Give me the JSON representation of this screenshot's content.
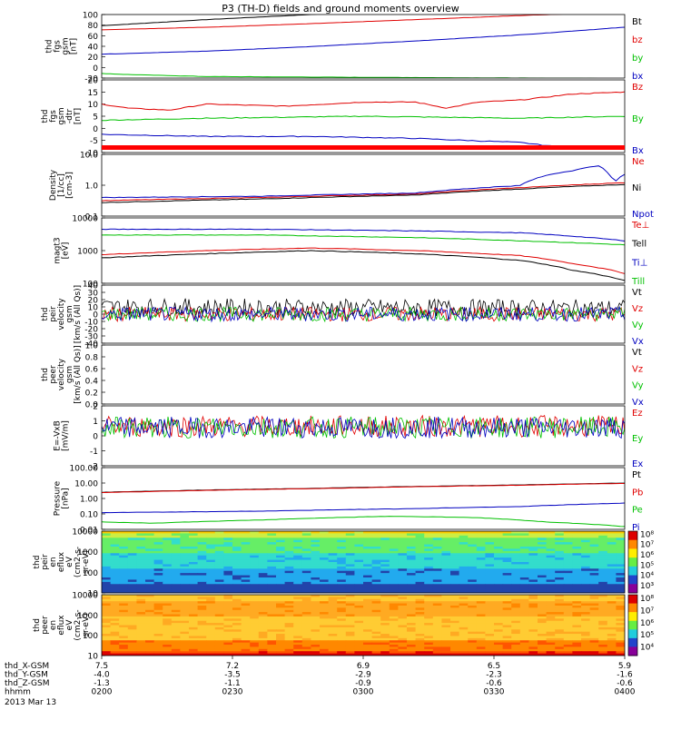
{
  "title": "P3 (TH-D) fields and ground moments overview",
  "chart_data": [
    {
      "panel": "fgs-gsm",
      "type": "line",
      "ylabel": [
        "thd",
        "fgs",
        "gsm",
        "[nT]"
      ],
      "yticks": [
        "100",
        "80",
        "60",
        "40",
        "20",
        "0",
        "-20"
      ],
      "ylim": [
        -25,
        100
      ],
      "series": [
        {
          "name": "Bt",
          "color": "#000000",
          "x": [
            0,
            0.2,
            0.4,
            0.55,
            1
          ],
          "y": [
            78,
            90,
            100,
            110,
            120
          ]
        },
        {
          "name": "bz",
          "color": "#e00000",
          "x": [
            0,
            0.2,
            0.4,
            0.6,
            0.8,
            1
          ],
          "y": [
            70,
            75,
            82,
            90,
            98,
            105
          ]
        },
        {
          "name": "by",
          "color": "#00c000",
          "x": [
            0,
            0.05,
            0.2,
            1
          ],
          "y": [
            -16,
            -18,
            -22,
            -26
          ]
        },
        {
          "name": "bx",
          "color": "#0000c0",
          "x": [
            0,
            0.2,
            0.4,
            0.6,
            0.8,
            1
          ],
          "y": [
            22,
            28,
            37,
            48,
            60,
            75
          ]
        }
      ]
    },
    {
      "panel": "fgs-gsm-dtr",
      "type": "line",
      "ylabel": [
        "thd",
        "fgs",
        "gsm",
        "-dtr",
        "[nT]"
      ],
      "yticks": [
        "20",
        "15",
        "10",
        "5",
        "0",
        "-5",
        "-10"
      ],
      "ylim": [
        -14,
        22
      ],
      "series": [
        {
          "name": "Bz",
          "color": "#e00000",
          "x": [
            0,
            0.05,
            0.13,
            0.2,
            0.35,
            0.5,
            0.6,
            0.66,
            0.72,
            0.8,
            0.9,
            1
          ],
          "y": [
            10,
            8,
            7,
            10,
            9,
            11,
            11,
            8,
            11,
            12,
            15,
            16
          ]
        },
        {
          "name": "By",
          "color": "#00c000",
          "x": [
            0,
            0.2,
            0.5,
            0.8,
            1
          ],
          "y": [
            2,
            3,
            4,
            3,
            4
          ]
        },
        {
          "name": "Bx",
          "color": "#0000c0",
          "x": [
            0,
            0.2,
            0.4,
            0.6,
            0.8,
            0.9,
            1
          ],
          "y": [
            -5,
            -6,
            -6,
            -7,
            -9,
            -12,
            -12
          ]
        }
      ]
    },
    {
      "panel": "density",
      "type": "line",
      "scale": "log",
      "ylabel": [
        "Density",
        "[1/cc]",
        "[cm-3]"
      ],
      "yticks": [
        "10.0",
        "1.0",
        "0.1"
      ],
      "ylim": [
        0.1,
        15
      ],
      "series": [
        {
          "name": "Ne",
          "color": "#e00000",
          "x": [
            0,
            0.3,
            0.6,
            0.8,
            1
          ],
          "y": [
            0.35,
            0.45,
            0.6,
            1.0,
            1.5
          ]
        },
        {
          "name": "Ni",
          "color": "#000000",
          "x": [
            0,
            0.3,
            0.6,
            0.8,
            1
          ],
          "y": [
            0.3,
            0.4,
            0.55,
            0.9,
            1.3
          ]
        },
        {
          "name": "Npot",
          "color": "#0000c0",
          "x": [
            0,
            0.3,
            0.6,
            0.8,
            0.86,
            0.9,
            0.95,
            0.98,
            1
          ],
          "y": [
            0.45,
            0.5,
            0.65,
            1.2,
            3,
            4,
            6,
            1.5,
            3
          ]
        }
      ]
    },
    {
      "panel": "temperature",
      "type": "line",
      "scale": "log",
      "ylabel": [
        "magt3",
        "[eV]"
      ],
      "yticks": [
        "10000",
        "1000",
        "100"
      ],
      "ylim": [
        100,
        10000
      ],
      "series": [
        {
          "name": "Te⊥",
          "color": "#e00000",
          "x": [
            0,
            0.2,
            0.4,
            0.6,
            0.8,
            0.9,
            1
          ],
          "y": [
            750,
            1000,
            1200,
            1000,
            700,
            400,
            200
          ]
        },
        {
          "name": "Tell",
          "color": "#000000",
          "x": [
            0,
            0.2,
            0.4,
            0.6,
            0.8,
            0.9,
            1
          ],
          "y": [
            600,
            800,
            1000,
            800,
            500,
            250,
            120
          ]
        },
        {
          "name": "Ti⊥",
          "color": "#0000c0",
          "x": [
            0,
            0.3,
            0.6,
            0.8,
            1
          ],
          "y": [
            4500,
            4500,
            4000,
            3500,
            2000
          ]
        },
        {
          "name": "Till",
          "color": "#00c000",
          "x": [
            0,
            0.3,
            0.6,
            0.8,
            1
          ],
          "y": [
            3000,
            3000,
            2500,
            2000,
            1500
          ]
        }
      ]
    },
    {
      "panel": "peir-velocity",
      "type": "line",
      "noise": true,
      "ylabel": [
        "thd",
        "peir",
        "velocity",
        "gsm",
        "[km/s (All Qs)]"
      ],
      "yticks": [
        "40",
        "30",
        "20",
        "10",
        "0",
        "-10",
        "-20",
        "-30",
        "-40"
      ],
      "ylim": [
        -40,
        40
      ],
      "series": [
        {
          "name": "Vt",
          "color": "#000000",
          "x": [
            0,
            1
          ],
          "y": [
            10,
            8
          ]
        },
        {
          "name": "Vz",
          "color": "#e00000",
          "x": [
            0,
            1
          ],
          "y": [
            0,
            0
          ]
        },
        {
          "name": "Vy",
          "color": "#00c000",
          "x": [
            0,
            1
          ],
          "y": [
            0,
            0
          ]
        },
        {
          "name": "Vx",
          "color": "#0000c0",
          "x": [
            0,
            1
          ],
          "y": [
            0,
            0
          ]
        }
      ]
    },
    {
      "panel": "peer-velocity",
      "type": "line",
      "ylabel": [
        "thd",
        "peer",
        "velocity",
        "gsm",
        "[km/s (All Qs)]"
      ],
      "yticks": [
        "1.0",
        "0.8",
        "0.6",
        "0.4",
        "0.2",
        "0.0"
      ],
      "ylim": [
        0,
        1
      ],
      "series": [
        {
          "name": "Vt",
          "color": "#000000",
          "x": [],
          "y": []
        },
        {
          "name": "Vz",
          "color": "#e00000",
          "x": [],
          "y": []
        },
        {
          "name": "Vy",
          "color": "#00c000",
          "x": [],
          "y": []
        },
        {
          "name": "Vx",
          "color": "#0000c0",
          "x": [],
          "y": []
        }
      ]
    },
    {
      "panel": "efield",
      "type": "line",
      "noise": true,
      "ylabel": [
        "E=-VxB",
        "[mV/m]"
      ],
      "yticks": [
        "2",
        "1",
        "0",
        "-1",
        "-2"
      ],
      "ylim": [
        -3,
        2
      ],
      "series": [
        {
          "name": "Ez",
          "color": "#e00000",
          "x": [
            0,
            1
          ],
          "y": [
            0.3,
            0.3
          ]
        },
        {
          "name": "Ey",
          "color": "#00c000",
          "x": [
            0,
            1
          ],
          "y": [
            0.2,
            0.2
          ]
        },
        {
          "name": "Ex",
          "color": "#0000c0",
          "x": [
            0,
            1
          ],
          "y": [
            0.2,
            0.2
          ]
        }
      ]
    },
    {
      "panel": "pressure",
      "type": "line",
      "scale": "log",
      "ylabel": [
        "Pressure",
        "[nPa]"
      ],
      "yticks": [
        "100.00",
        "10.00",
        "1.00",
        "0.10",
        "0.01"
      ],
      "ylim": [
        0.01,
        100
      ],
      "series": [
        {
          "name": "Pt",
          "color": "#000000",
          "x": [
            0,
            0.4,
            0.8,
            1
          ],
          "y": [
            2.5,
            4.5,
            7.5,
            10
          ]
        },
        {
          "name": "Pb",
          "color": "#e00000",
          "x": [
            0,
            0.4,
            0.8,
            1
          ],
          "y": [
            2.4,
            4.3,
            7.2,
            9.5
          ]
        },
        {
          "name": "Pe",
          "color": "#00c000",
          "x": [
            0,
            0.1,
            0.3,
            0.55,
            0.7,
            0.85,
            1
          ],
          "y": [
            0.03,
            0.025,
            0.04,
            0.07,
            0.06,
            0.03,
            0.015
          ]
        },
        {
          "name": "Pi",
          "color": "#0000c0",
          "x": [
            0,
            0.3,
            0.6,
            0.8,
            1
          ],
          "y": [
            0.12,
            0.15,
            0.22,
            0.3,
            0.5
          ]
        }
      ]
    },
    {
      "panel": "peir-en-eflux",
      "type": "heatmap",
      "ylabel": [
        "thd",
        "peir",
        "en",
        "eflux",
        "eV",
        "(cm2-s-",
        "sr-eV)"
      ],
      "yticks": [
        "10000",
        "1000",
        "100",
        "10"
      ],
      "colorbar_ticks": [
        "10⁸",
        "10⁷",
        "10⁶",
        "10⁵",
        "10⁴",
        "10³"
      ],
      "colors": [
        "#2244aa",
        "#22aaee",
        "#33ddcc",
        "#66ee66",
        "#ccee44",
        "#ffcc00"
      ]
    },
    {
      "panel": "peer-en-eflux",
      "type": "heatmap",
      "ylabel": [
        "thd",
        "peer",
        "en",
        "eflux",
        "eV",
        "(cm2-s-",
        "sr-eV)"
      ],
      "yticks": [
        "10000",
        "1000",
        "100",
        "10"
      ],
      "colorbar_ticks": [
        "10⁸",
        "10⁷",
        "10⁶",
        "10⁵",
        "10⁴"
      ],
      "colors": [
        "#ffdd66",
        "#ffcc33",
        "#ffaa22",
        "#ff8800",
        "#ff5500",
        "#dd0000"
      ]
    }
  ],
  "x_axis": {
    "rows": [
      {
        "label": "thd_X-GSM",
        "values": [
          "7.5",
          "7.2",
          "6.9",
          "6.5",
          "5.9"
        ]
      },
      {
        "label": "thd_Y-GSM",
        "values": [
          "-4.0",
          "-3.5",
          "-2.9",
          "-2.3",
          "-1.6"
        ]
      },
      {
        "label": "thd_Z-GSM",
        "values": [
          "-1.3",
          "-1.1",
          "-0.9",
          "-0.6",
          "-0.6"
        ]
      },
      {
        "label": "hhmm",
        "values": [
          "0200",
          "0230",
          "0300",
          "0330",
          "0400"
        ]
      }
    ],
    "date": "2013 Mar 13"
  }
}
